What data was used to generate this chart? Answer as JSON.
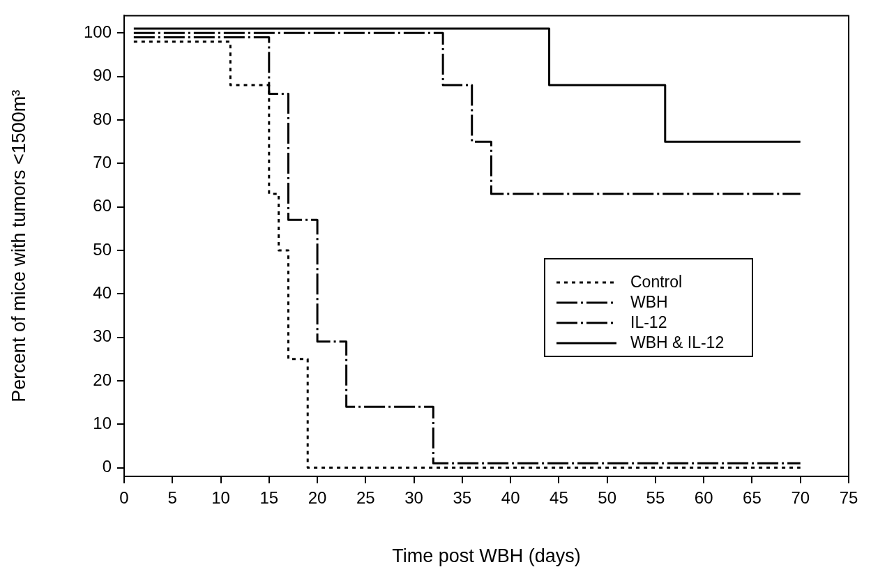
{
  "chart_data": {
    "type": "step",
    "xlabel": "Time post WBH (days)",
    "ylabel": "Percent of mice with tumors <1500m³",
    "xlim": [
      0,
      75
    ],
    "xticks": [
      0,
      5,
      10,
      15,
      20,
      25,
      30,
      35,
      40,
      45,
      50,
      55,
      60,
      65,
      70,
      75
    ],
    "ylim": [
      -2,
      104
    ],
    "yticks": [
      0,
      10,
      20,
      30,
      40,
      50,
      60,
      70,
      80,
      90,
      100
    ],
    "grid": false,
    "legend": "right",
    "series": [
      {
        "name": "Control",
        "color": "#000000",
        "line_style": "dotted",
        "x": [
          1,
          11,
          15,
          16,
          17,
          19,
          70
        ],
        "values": [
          98,
          88,
          63,
          50,
          25,
          0,
          0
        ]
      },
      {
        "name": "WBH",
        "color": "#000000",
        "line_style": "dashed",
        "x": [
          1,
          15,
          17,
          20,
          23,
          32,
          70
        ],
        "values": [
          99,
          86,
          57,
          29,
          14,
          1,
          1
        ]
      },
      {
        "name": "IL-12",
        "color": "#000000",
        "line_style": "dashed",
        "x": [
          1,
          33,
          36,
          38,
          70
        ],
        "values": [
          100,
          88,
          75,
          63,
          63
        ]
      },
      {
        "name": "WBH & IL-12",
        "color": "#000000",
        "line_style": "solid",
        "x": [
          1,
          44,
          56,
          70
        ],
        "values": [
          101,
          88,
          75,
          75
        ]
      }
    ]
  }
}
